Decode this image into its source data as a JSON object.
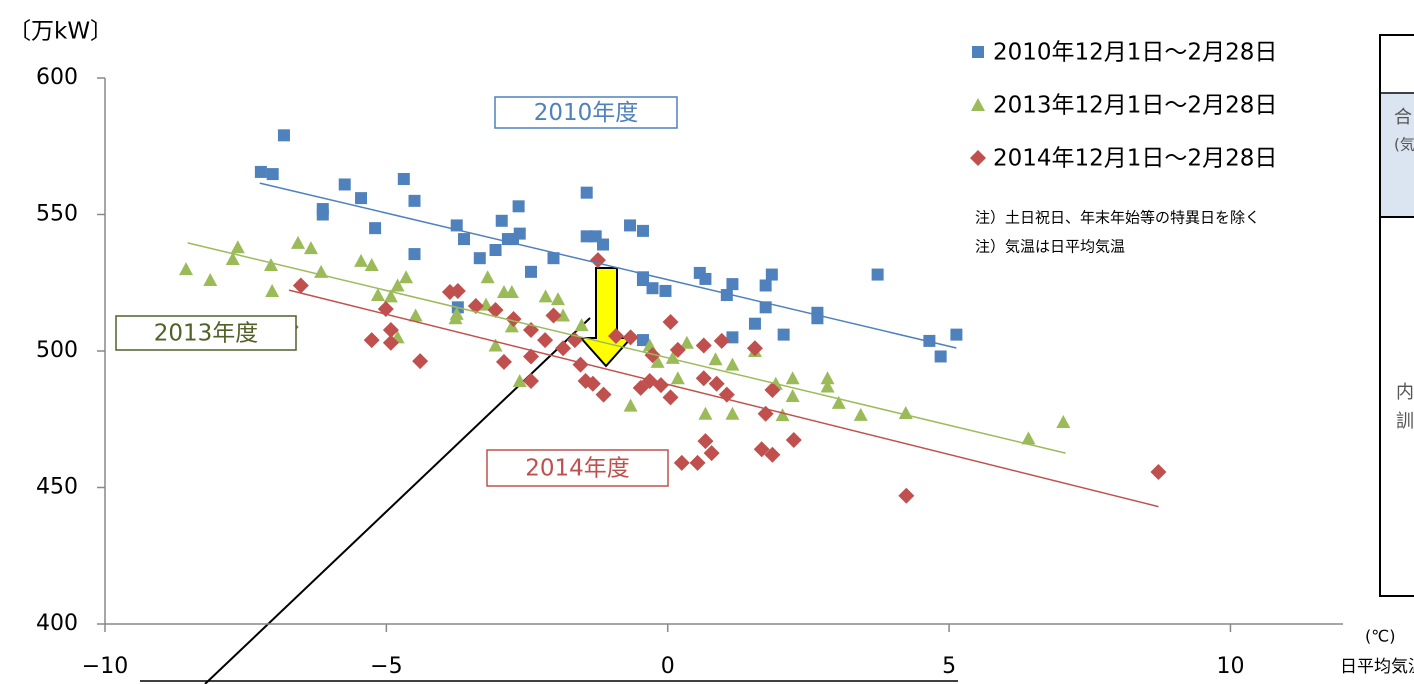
{
  "chart_data": {
    "type": "scatter",
    "unit_label": "〔万kW〕",
    "x_unit_label": "(℃)",
    "x_label": "日平均気温",
    "xlim": [
      -10,
      12
    ],
    "xticks": [
      {
        "value": -10,
        "label": "−10"
      },
      {
        "value": -5,
        "label": "−5"
      },
      0,
      5,
      10
    ],
    "ylim": [
      400,
      600
    ],
    "yticks": [
      400,
      450,
      500,
      550,
      600
    ],
    "series": [
      {
        "name": "2010年12月1日～2月28日",
        "color": "#4f81bd",
        "marker": "square",
        "x": [
          -7.23,
          -7.02,
          -6.82,
          -5.74,
          -5.45,
          -6.13,
          -6.13,
          -5.2,
          -4.69,
          -4.5,
          -4.5,
          -3.75,
          -3.62,
          -3.34,
          -3.73,
          -3.06,
          -2.95,
          -2.84,
          -2.75,
          -2.63,
          -2.65,
          -2.43,
          -2.03,
          -1.44,
          -1.44,
          -1.28,
          -1.15,
          -0.67,
          -0.44,
          -0.44,
          -0.44,
          -0.27,
          -0.04,
          -0.44,
          0.57,
          0.67,
          1.05,
          1.15,
          1.15,
          1.55,
          1.74,
          1.74,
          1.85,
          2.06,
          2.66,
          2.66,
          3.73,
          4.65,
          4.85,
          5.13
        ],
        "values": [
          565.6,
          564.8,
          579,
          561,
          556,
          552,
          550,
          545,
          563,
          555,
          535.5,
          546,
          541,
          534,
          516,
          537,
          547.7,
          541,
          541,
          543,
          553,
          529,
          534,
          558,
          542,
          542,
          539,
          546,
          544,
          527,
          526,
          523,
          522,
          504,
          528.6,
          526.4,
          520.5,
          524.5,
          505,
          510,
          524,
          516,
          528,
          506,
          514,
          512,
          528,
          503.7,
          498,
          506
        ],
        "trend": {
          "x": [
            -7.25,
            5.13
          ],
          "values": [
            561.5,
            501.1
          ]
        }
      },
      {
        "name": "2013年12月1日～2月28日",
        "color": "#9bbb59",
        "marker": "triangle",
        "x": [
          -8.56,
          -8.13,
          -7.73,
          -7.64,
          -7.05,
          -7.03,
          -6.57,
          -6.34,
          -6.16,
          -5.45,
          -5.26,
          -5.15,
          -4.92,
          -4.8,
          -4.65,
          -4.8,
          -4.48,
          -3.77,
          -3.75,
          -3.23,
          -3.2,
          -2.91,
          -2.77,
          -3.06,
          -2.77,
          -2.63,
          -2.17,
          -1.95,
          -1.86,
          -1.53,
          -0.66,
          -0.32,
          -0.18,
          0.09,
          0.18,
          0.34,
          0.67,
          0.85,
          1.15,
          1.15,
          1.55,
          1.92,
          2.04,
          2.22,
          2.22,
          2.84,
          2.84,
          3.04,
          3.43,
          4.23,
          6.41,
          7.03
        ],
        "values": [
          530,
          526,
          533.7,
          538,
          531.5,
          522,
          539.6,
          537.7,
          529,
          533,
          531.5,
          520.5,
          520,
          524,
          527,
          505,
          513,
          512,
          513.6,
          517,
          527,
          521.6,
          521.6,
          502,
          509,
          489,
          520,
          519,
          513,
          509.5,
          480,
          502,
          496,
          497.5,
          490,
          503,
          477,
          497,
          477,
          495,
          500,
          488,
          476.5,
          490,
          483.5,
          490,
          487,
          481,
          476.6,
          477.3,
          468,
          474
        ],
        "trend": {
          "x": [
            -8.53,
            7.07
          ],
          "values": [
            539.6,
            462.6
          ]
        }
      },
      {
        "name": "2014年12月1日～2月28日",
        "color": "#c0504d",
        "marker": "diamond",
        "x": [
          -6.7,
          -6.52,
          -5.26,
          -5.01,
          -4.92,
          -4.92,
          -4.4,
          -3.87,
          -3.73,
          -3.41,
          -3.06,
          -2.91,
          -2.74,
          -2.43,
          -2.43,
          -2.43,
          -2.18,
          -2.03,
          -1.86,
          -1.65,
          -1.55,
          -1.46,
          -1.33,
          -1.24,
          -1.14,
          -0.92,
          -0.66,
          -0.48,
          -0.32,
          -0.32,
          -0.27,
          -0.12,
          0.05,
          0.05,
          0.18,
          0.25,
          0.53,
          0.64,
          0.64,
          0.67,
          0.78,
          0.87,
          0.96,
          1.05,
          1.55,
          1.67,
          1.74,
          1.86,
          1.86,
          2.24,
          4.24,
          8.72
        ],
        "values": [
          508.8,
          524,
          504,
          515.4,
          503,
          507.7,
          496.3,
          521.6,
          522,
          516.5,
          515,
          496,
          511.7,
          498,
          489,
          507.7,
          504,
          513,
          501,
          504,
          495,
          489,
          488,
          533.3,
          484,
          505.5,
          505,
          486.5,
          457.5,
          489,
          498.5,
          487.5,
          510.6,
          483,
          500.4,
          459,
          459,
          490,
          502,
          467,
          462.6,
          488,
          503.7,
          484,
          501,
          464,
          477,
          485.7,
          462,
          467.4,
          447,
          455.7
        ],
        "trend": {
          "x": [
            -6.73,
            8.72
          ],
          "values": [
            522.3,
            443
          ]
        }
      }
    ],
    "annotations": [
      "2010年度",
      "2013年度",
      "2014年度"
    ],
    "notes": [
      "注）土日祝日、年末年始等の特異日を除く",
      "注）気温は日平均気温"
    ],
    "side_table": {
      "cells": [
        "合",
        "(気",
        "内",
        "訓"
      ]
    }
  }
}
